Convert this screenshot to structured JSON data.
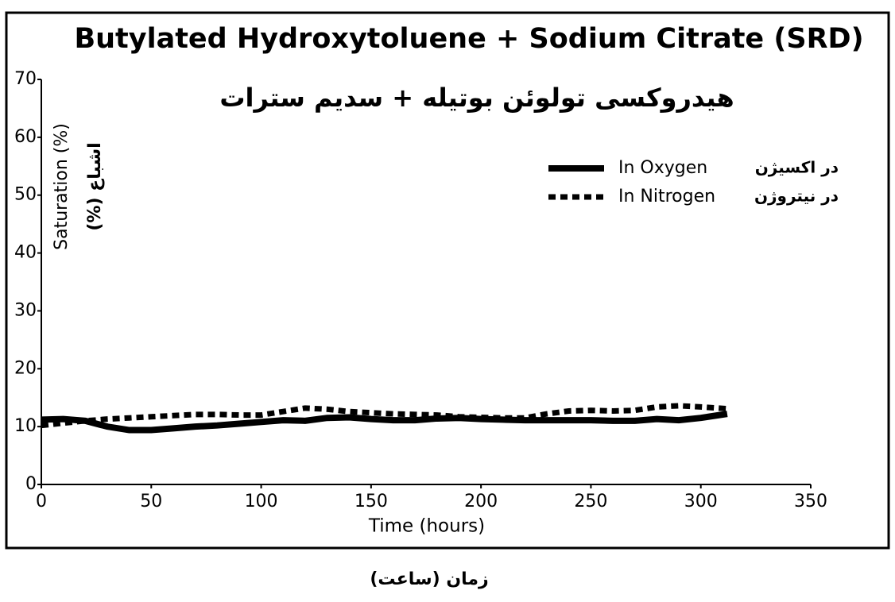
{
  "chart_data": {
    "type": "line",
    "title": "Butylated Hydroxytoluene + Sodium Citrate  (SRD)",
    "title_fa": "هیدروکسی تولوئن بوتیله + سدیم سترات",
    "x_label": "Time (hours)",
    "x_label_fa": "زمان (ساعت)",
    "y_label": "Saturation (%)",
    "y_label_fa": "اشباع (%)",
    "x": [
      0,
      10,
      20,
      30,
      40,
      50,
      60,
      70,
      80,
      90,
      100,
      110,
      120,
      130,
      140,
      150,
      160,
      170,
      180,
      190,
      200,
      210,
      220,
      230,
      240,
      250,
      260,
      270,
      280,
      290,
      300,
      312
    ],
    "series": [
      {
        "name": "In Oxygen",
        "name_fa": "در اکسیژن",
        "color": "#000000",
        "style": "solid",
        "values": [
          11.2,
          11.3,
          11,
          10,
          9.4,
          9.4,
          9.7,
          10,
          10.2,
          10.5,
          10.8,
          11.1,
          11,
          11.5,
          11.6,
          11.3,
          11.1,
          11.1,
          11.4,
          11.5,
          11.3,
          11.2,
          11.1,
          11.1,
          11.1,
          11.1,
          11,
          11,
          11.3,
          11.1,
          11.5,
          12.2
        ]
      },
      {
        "name": "In Nitrogen",
        "name_fa": "در نیتروژن",
        "color": "#000000",
        "style": "dotted",
        "values": [
          10.2,
          10.6,
          11,
          11.3,
          11.5,
          11.7,
          11.9,
          12.1,
          12.1,
          12,
          12,
          12.6,
          13.2,
          13,
          12.6,
          12.4,
          12.2,
          12.1,
          12,
          11.7,
          11.6,
          11.5,
          11.5,
          12.2,
          12.7,
          12.8,
          12.7,
          12.8,
          13.4,
          13.6,
          13.4,
          13.1
        ]
      }
    ],
    "xlim": [
      0,
      350
    ],
    "xticks": [
      0,
      50,
      100,
      150,
      200,
      250,
      300,
      350
    ],
    "ylim": [
      0,
      70
    ],
    "yticks": [
      0,
      10,
      20,
      30,
      40,
      50,
      60,
      70
    ]
  }
}
